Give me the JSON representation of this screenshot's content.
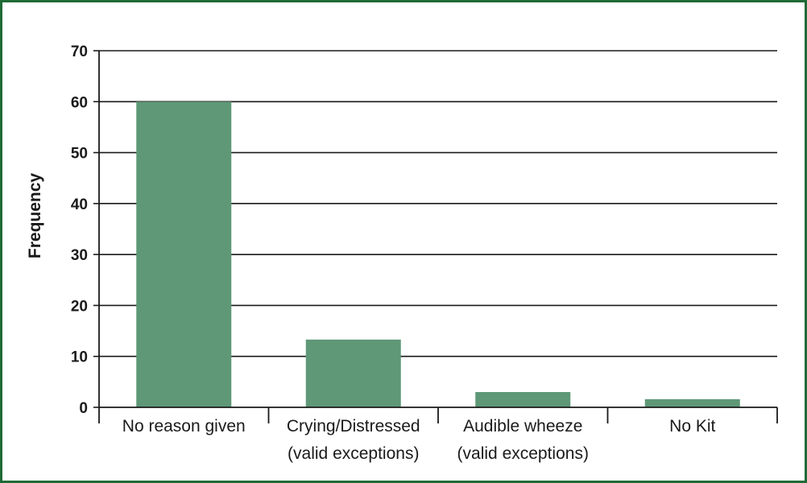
{
  "chart_data": {
    "type": "bar",
    "categories": [
      [
        "No reason given"
      ],
      [
        "Crying/Distressed",
        "(valid exceptions)"
      ],
      [
        "Audible wheeze",
        "(valid exceptions)"
      ],
      [
        "No Kit"
      ]
    ],
    "values": [
      60,
      13.3,
      3,
      1.6
    ],
    "title": "",
    "xlabel": "",
    "ylabel": "Frequency",
    "ylim": [
      0,
      70
    ],
    "yticks": [
      0,
      10,
      20,
      30,
      40,
      50,
      60,
      70
    ],
    "grid": true,
    "legend": "none",
    "colors": {
      "bar": "#5e9877",
      "frame": "#1e6b35",
      "grid": "#1a1a1a",
      "axis": "#1a1a1a"
    }
  }
}
